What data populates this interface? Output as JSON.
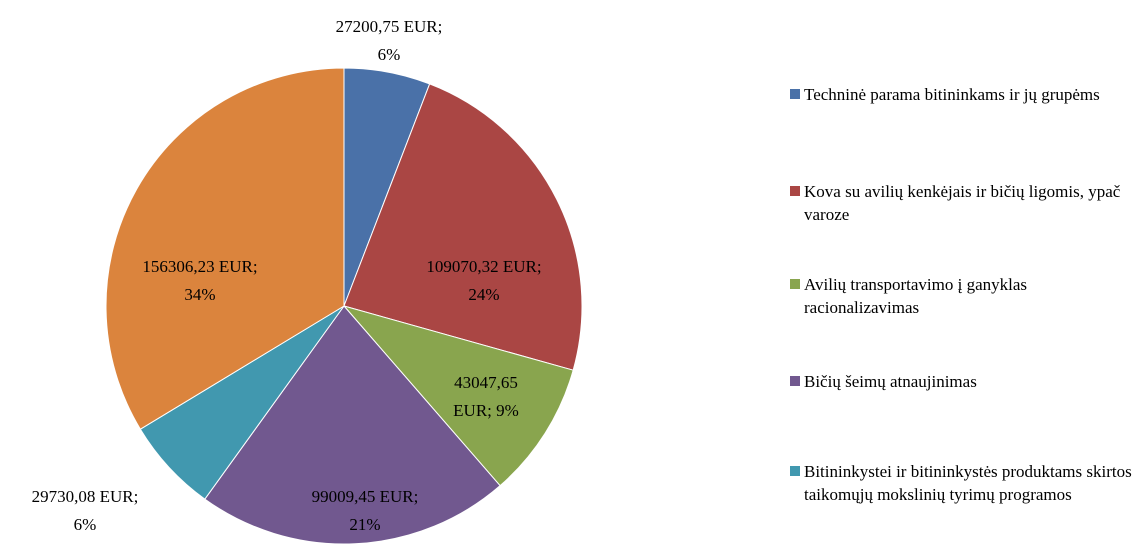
{
  "chart_data": {
    "type": "pie",
    "categories": [
      "Techninė parama bitininkams ir jų grupėms",
      "Kova su avilių kenkėjais ir bičių ligomis, ypač varoze",
      "Avilių transportavimo į ganyklas racionalizavimas",
      "Bičių šeimų atnaujinimas",
      "Bitininkystei ir bitininkystės produktams skirtos taikomųjų mokslinių tyrimų programos",
      null
    ],
    "values": [
      27200.75,
      109070.32,
      43047.65,
      99009.45,
      29730.08,
      156306.23
    ],
    "value_labels": [
      [
        "27200,75 EUR;",
        "6%"
      ],
      [
        "109070,32 EUR;",
        "24%"
      ],
      [
        "43047,65",
        "EUR; 9%"
      ],
      [
        "99009,45 EUR;",
        "21%"
      ],
      [
        "29730,08 EUR;",
        "6%"
      ],
      [
        "156306,23 EUR;",
        "34%"
      ]
    ],
    "colors": [
      "#4a71a8",
      "#aa4644",
      "#89a54e",
      "#71588f",
      "#4198af",
      "#db843d"
    ],
    "legend": "right"
  }
}
